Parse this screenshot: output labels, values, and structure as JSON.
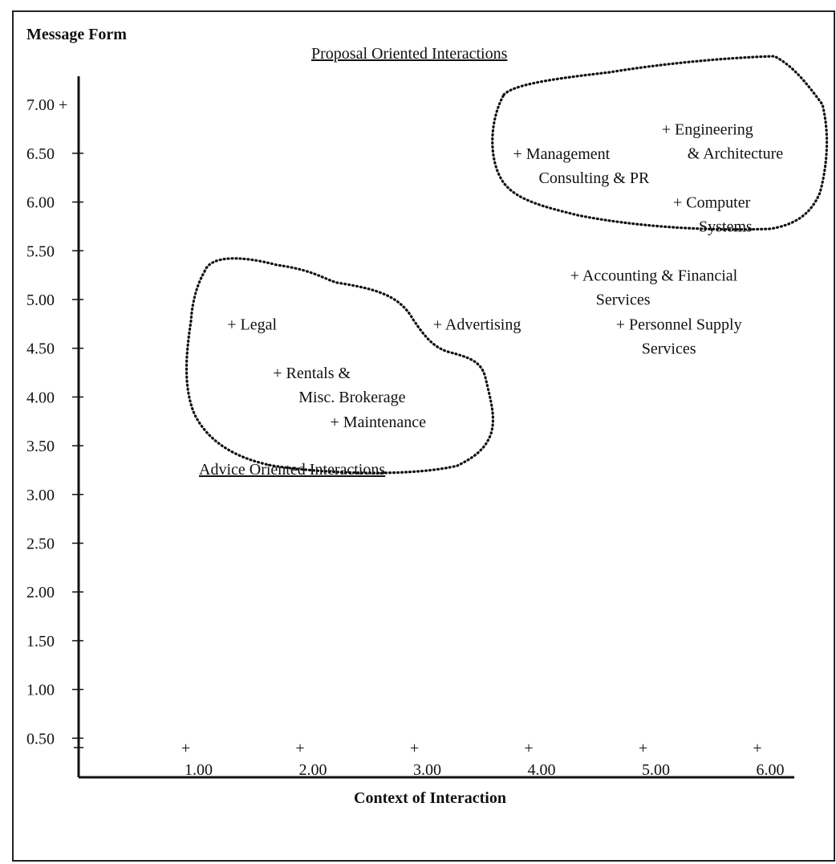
{
  "chart_data": {
    "type": "scatter",
    "ylabel": "Message Form",
    "xlabel": "Context of Interaction",
    "xlim": [
      0,
      6.3
    ],
    "ylim": [
      0,
      7
    ],
    "y_ticks": [
      {
        "v": 7.0,
        "label": "7.00 +"
      },
      {
        "v": 6.5,
        "label": "6.50"
      },
      {
        "v": 6.0,
        "label": "6.00"
      },
      {
        "v": 5.5,
        "label": "5.50"
      },
      {
        "v": 5.0,
        "label": "5.00"
      },
      {
        "v": 4.5,
        "label": "4.50"
      },
      {
        "v": 4.0,
        "label": "4.00"
      },
      {
        "v": 3.5,
        "label": "3.50"
      },
      {
        "v": 3.0,
        "label": "3.00"
      },
      {
        "v": 2.5,
        "label": "2.50"
      },
      {
        "v": 2.0,
        "label": "2.00"
      },
      {
        "v": 1.5,
        "label": "1.50"
      },
      {
        "v": 1.0,
        "label": "1.00"
      },
      {
        "v": 0.5,
        "label": "0.50"
      }
    ],
    "x_ticks": [
      {
        "v": 1,
        "label": "1.00"
      },
      {
        "v": 2,
        "label": "2.00"
      },
      {
        "v": 3,
        "label": "3.00"
      },
      {
        "v": 4,
        "label": "4.00"
      },
      {
        "v": 5,
        "label": "5.00"
      },
      {
        "v": 6,
        "label": "6.00"
      }
    ],
    "points": [
      {
        "x": 1.3,
        "y": 4.75,
        "lines": [
          "+ Legal"
        ]
      },
      {
        "x": 1.7,
        "y": 4.25,
        "lines": [
          "+ Rentals &",
          "Misc. Brokerage"
        ]
      },
      {
        "x": 2.2,
        "y": 3.75,
        "lines": [
          "+ Maintenance"
        ]
      },
      {
        "x": 3.1,
        "y": 4.75,
        "lines": [
          "+ Advertising"
        ]
      },
      {
        "x": 3.8,
        "y": 6.5,
        "lines": [
          "+ Management",
          "Consulting & PR"
        ]
      },
      {
        "x": 5.1,
        "y": 6.75,
        "lines": [
          "+ Engineering",
          "& Architecture"
        ]
      },
      {
        "x": 5.2,
        "y": 6.0,
        "lines": [
          "+ Computer",
          "Systems"
        ]
      },
      {
        "x": 4.3,
        "y": 5.25,
        "lines": [
          "+ Accounting & Financial",
          "Services"
        ]
      },
      {
        "x": 4.7,
        "y": 4.75,
        "lines": [
          "+ Personnel Supply",
          "Services"
        ]
      }
    ],
    "regions": [
      {
        "name": "Proposal Oriented Interactions"
      },
      {
        "name": "Advice Oriented Interactions"
      }
    ]
  }
}
